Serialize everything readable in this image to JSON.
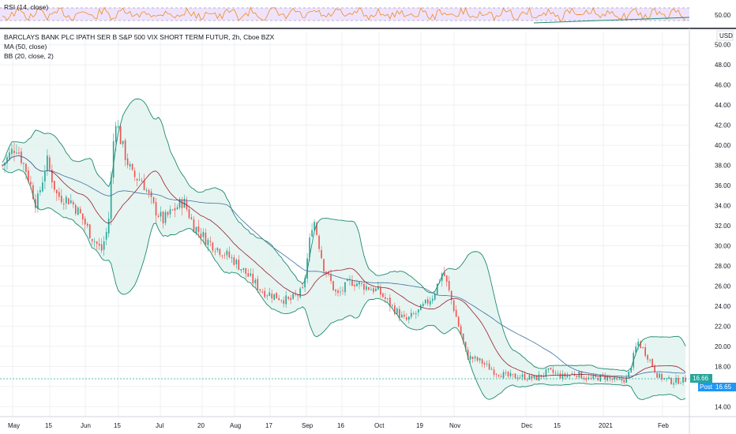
{
  "rsi_panel": {
    "label": "RSI (14, close)",
    "level_label": "50.00"
  },
  "main_panel": {
    "title": "BARCLAYS BANK PLC IPATH SER B S&P 500 VIX SHORT TERM FUTUR, 2h, Cboe BZX",
    "ma_label": "MA (50, close)",
    "bb_label": "BB (20, close, 2)",
    "currency": "USD",
    "last_price": "16.66",
    "post_label": "Post",
    "post_price": "16.65"
  },
  "colors": {
    "up": "#26a69a",
    "down": "#ef5350",
    "ma": "#9c1c2e",
    "bb_band": "#1e8a6e",
    "bb_basis": "#3f6fa3",
    "rsi": "#f08a24",
    "rsi_fill": "#efe3fb",
    "price_tag": "#26a69a",
    "post_tag": "#2196f3"
  },
  "chart_data": {
    "type": "candlestick",
    "y_range": [
      13.0,
      51.0
    ],
    "y_ticks": [
      "14.00",
      "16.00",
      "18.00",
      "20.00",
      "22.00",
      "24.00",
      "26.00",
      "28.00",
      "30.00",
      "32.00",
      "34.00",
      "36.00",
      "38.00",
      "40.00",
      "42.00",
      "44.00",
      "46.00",
      "48.00",
      "50.00"
    ],
    "x_ticks": [
      "May",
      "15",
      "Jun",
      "15",
      "Jul",
      "20",
      "Aug",
      "17",
      "Sep",
      "16",
      "Oct",
      "19",
      "Nov",
      "Dec",
      "15",
      "2021",
      "Feb"
    ],
    "close_path": [
      {
        "t": 0.0,
        "v": 38.0
      },
      {
        "t": 0.02,
        "v": 40.0
      },
      {
        "t": 0.035,
        "v": 37.5
      },
      {
        "t": 0.05,
        "v": 34.0
      },
      {
        "t": 0.065,
        "v": 38.5
      },
      {
        "t": 0.08,
        "v": 35.0
      },
      {
        "t": 0.1,
        "v": 34.5
      },
      {
        "t": 0.115,
        "v": 33.0
      },
      {
        "t": 0.13,
        "v": 31.0
      },
      {
        "t": 0.145,
        "v": 29.5
      },
      {
        "t": 0.155,
        "v": 32.0
      },
      {
        "t": 0.165,
        "v": 43.0
      },
      {
        "t": 0.175,
        "v": 40.0
      },
      {
        "t": 0.19,
        "v": 37.0
      },
      {
        "t": 0.205,
        "v": 36.5
      },
      {
        "t": 0.22,
        "v": 34.0
      },
      {
        "t": 0.235,
        "v": 32.5
      },
      {
        "t": 0.25,
        "v": 33.5
      },
      {
        "t": 0.265,
        "v": 34.5
      },
      {
        "t": 0.28,
        "v": 32.0
      },
      {
        "t": 0.3,
        "v": 30.5
      },
      {
        "t": 0.32,
        "v": 29.5
      },
      {
        "t": 0.34,
        "v": 28.5
      },
      {
        "t": 0.36,
        "v": 27.0
      },
      {
        "t": 0.38,
        "v": 25.5
      },
      {
        "t": 0.4,
        "v": 25.0
      },
      {
        "t": 0.42,
        "v": 24.5
      },
      {
        "t": 0.44,
        "v": 25.5
      },
      {
        "t": 0.455,
        "v": 33.0
      },
      {
        "t": 0.47,
        "v": 28.0
      },
      {
        "t": 0.49,
        "v": 25.0
      },
      {
        "t": 0.51,
        "v": 26.5
      },
      {
        "t": 0.53,
        "v": 26.0
      },
      {
        "t": 0.55,
        "v": 25.5
      },
      {
        "t": 0.57,
        "v": 24.0
      },
      {
        "t": 0.59,
        "v": 22.5
      },
      {
        "t": 0.61,
        "v": 23.5
      },
      {
        "t": 0.63,
        "v": 25.0
      },
      {
        "t": 0.645,
        "v": 27.5
      },
      {
        "t": 0.66,
        "v": 24.0
      },
      {
        "t": 0.68,
        "v": 19.0
      },
      {
        "t": 0.7,
        "v": 18.5
      },
      {
        "t": 0.72,
        "v": 17.5
      },
      {
        "t": 0.74,
        "v": 17.0
      },
      {
        "t": 0.76,
        "v": 17.0
      },
      {
        "t": 0.78,
        "v": 16.8
      },
      {
        "t": 0.8,
        "v": 17.5
      },
      {
        "t": 0.82,
        "v": 17.0
      },
      {
        "t": 0.84,
        "v": 17.3
      },
      {
        "t": 0.86,
        "v": 16.7
      },
      {
        "t": 0.88,
        "v": 17.0
      },
      {
        "t": 0.9,
        "v": 16.5
      },
      {
        "t": 0.915,
        "v": 16.8
      },
      {
        "t": 0.93,
        "v": 20.5
      },
      {
        "t": 0.945,
        "v": 19.0
      },
      {
        "t": 0.96,
        "v": 17.0
      },
      {
        "t": 0.98,
        "v": 16.5
      },
      {
        "t": 1.0,
        "v": 16.66
      }
    ]
  }
}
